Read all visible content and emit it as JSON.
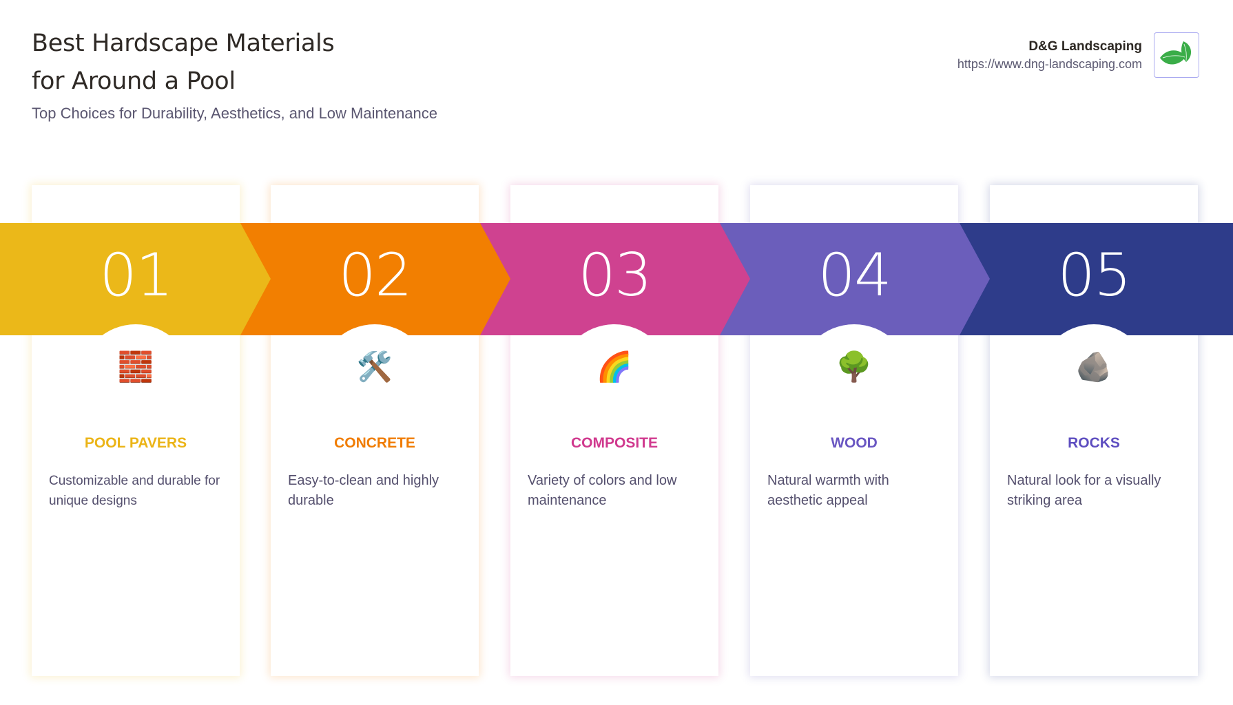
{
  "header": {
    "title_line1": "Best Hardscape Materials",
    "title_line2": "for Around a Pool",
    "subtitle": "Top Choices for Durability, Aesthetics, and Low Maintenance"
  },
  "brand": {
    "name": "D&G Landscaping",
    "url": "https://www.dng-landscaping.com",
    "logo_icon": "leaf-icon",
    "logo_color": "#3aad48"
  },
  "steps": [
    {
      "number": "01",
      "title": "POOL PAVERS",
      "description": "Customizable and durable for unique designs",
      "icon": "brick-icon",
      "emoji": "🧱",
      "color": "#EBB819",
      "label_color": "#EBB417"
    },
    {
      "number": "02",
      "title": "CONCRETE",
      "description": "Easy-to-clean and highly durable",
      "icon": "hammer-wrench-icon",
      "emoji": "🛠️",
      "color": "#F27F01",
      "label_color": "#F07C00"
    },
    {
      "number": "03",
      "title": "COMPOSITE",
      "description": "Variety of colors and low maintenance",
      "icon": "rainbow-icon",
      "emoji": "🌈",
      "color": "#CF4290",
      "label_color": "#D0398E"
    },
    {
      "number": "04",
      "title": "WOOD",
      "description": "Natural warmth with aesthetic appeal",
      "icon": "tree-icon",
      "emoji": "🌳",
      "color": "#6B5EBB",
      "label_color": "#6A57C2"
    },
    {
      "number": "05",
      "title": "ROCKS",
      "description": "Natural look for a visually striking area",
      "icon": "rock-icon",
      "emoji": "🪨",
      "color": "#2E3C8A",
      "label_color": "#5E4EC0"
    }
  ]
}
